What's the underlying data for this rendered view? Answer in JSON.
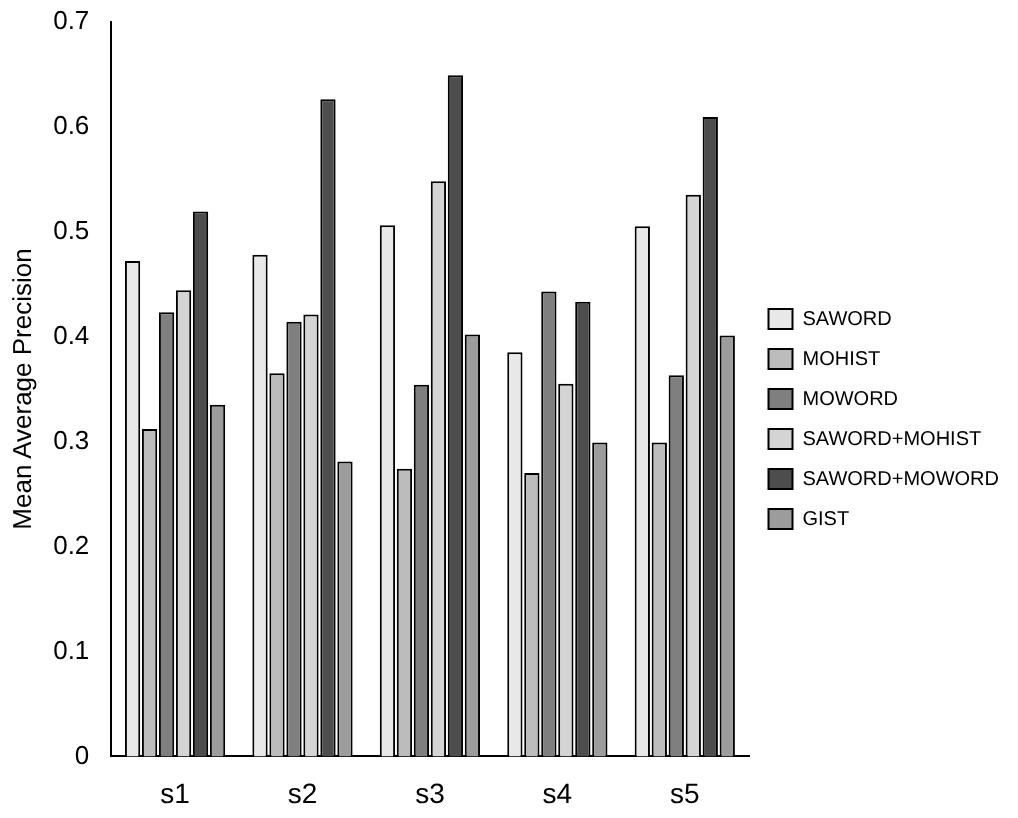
{
  "chart_data": {
    "type": "bar",
    "ylabel": "Mean Average Precision",
    "categories": [
      "s1",
      "s2",
      "s3",
      "s4",
      "s5"
    ],
    "ylim": [
      0,
      0.7
    ],
    "yticks": [
      0,
      0.1,
      0.2,
      0.3,
      0.4,
      0.5,
      0.6,
      0.7
    ],
    "grid": false,
    "legend": "right",
    "series": [
      {
        "name": "SAWORD",
        "color": "#e8e8e8",
        "values": [
          0.472,
          0.478,
          0.506,
          0.385,
          0.505
        ]
      },
      {
        "name": "MOHIST",
        "color": "#bcbcbc",
        "values": [
          0.312,
          0.365,
          0.274,
          0.27,
          0.299
        ]
      },
      {
        "name": "MOWORD",
        "color": "#7f7f7f",
        "values": [
          0.423,
          0.414,
          0.354,
          0.443,
          0.363
        ]
      },
      {
        "name": "SAWORD+MOHIST",
        "color": "#d4d4d4",
        "values": [
          0.444,
          0.421,
          0.548,
          0.355,
          0.535
        ]
      },
      {
        "name": "SAWORD+MOWORD",
        "color": "#4d4d4d",
        "values": [
          0.519,
          0.626,
          0.649,
          0.433,
          0.609
        ]
      },
      {
        "name": "GIST",
        "color": "#9c9c9c",
        "values": [
          0.335,
          0.281,
          0.402,
          0.299,
          0.401
        ]
      }
    ]
  }
}
